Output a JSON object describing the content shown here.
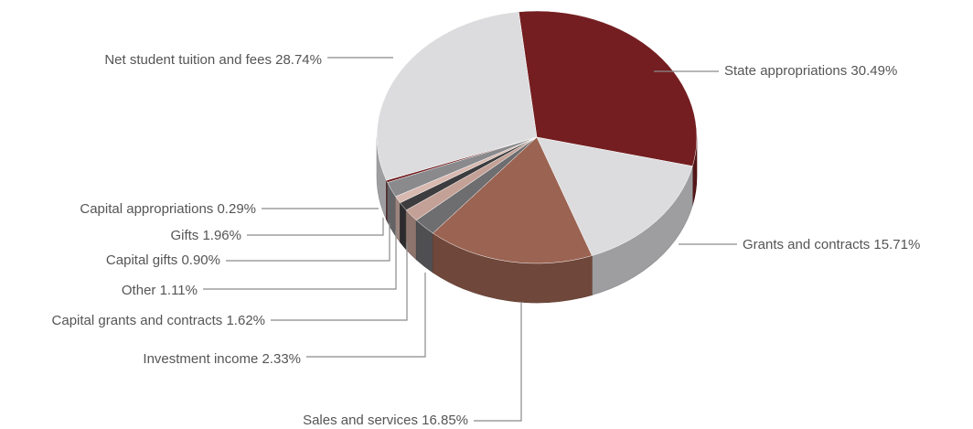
{
  "chart_data": {
    "type": "pie",
    "title": "",
    "slices": [
      {
        "label": "State appropriations 30.49%",
        "value": 30.49,
        "color": "#741e21"
      },
      {
        "label": "Grants and contracts 15.71%",
        "value": 15.71,
        "color": "#dcdcde"
      },
      {
        "label": "Sales and services 16.85%",
        "value": 16.85,
        "color": "#9b6352"
      },
      {
        "label": "Investment income 2.33%",
        "value": 2.33,
        "color": "#6e6d70"
      },
      {
        "label": "Capital grants and contracts 1.62%",
        "value": 1.62,
        "color": "#c4a196"
      },
      {
        "label": "Other 1.11%",
        "value": 1.11,
        "color": "#3d3c3e"
      },
      {
        "label": "Capital gifts 0.90%",
        "value": 0.9,
        "color": "#d8b9b0"
      },
      {
        "label": "Gifts 1.96%",
        "value": 1.96,
        "color": "#8a8a8d"
      },
      {
        "label": "Capital appropriations 0.29%",
        "value": 0.29,
        "color": "#6e1a1d"
      },
      {
        "label": "Net student tuition and fees 28.74%",
        "value": 28.74,
        "color": "#dcdcde"
      }
    ],
    "legend": "none"
  }
}
